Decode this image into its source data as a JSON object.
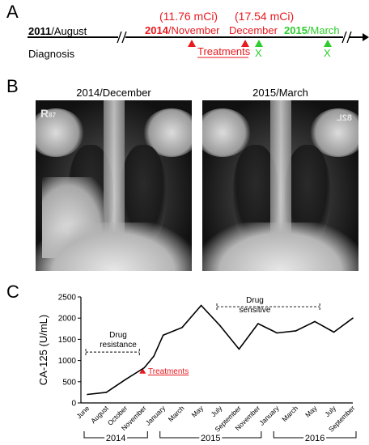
{
  "panel_a": {
    "letter": "A",
    "start_year": "2011",
    "start_rest": "/August",
    "diagnosis": "Diagnosis",
    "dose1": "(11.76 mCi)",
    "dose2": "(17.54 mCi)",
    "t1_year": "2014",
    "t1_rest": "/November",
    "t2": "December",
    "followup_year": "2015",
    "followup_rest": "/March",
    "treatments": "Treatments",
    "x_mark": "X",
    "colors": {
      "treatment": "#e8191f",
      "followup": "#2ecc2e"
    }
  },
  "panel_b": {
    "letter": "B",
    "image1_title": "2014/December",
    "image1_marker": "R",
    "image1_marker_sub": "87",
    "image2_title": "2015/March",
    "image2_marker": "82L"
  },
  "panel_c": {
    "letter": "C",
    "drug_resistance": [
      "Drug",
      "resistance"
    ],
    "drug_sensitive": [
      "Drug",
      "sensitive"
    ],
    "treatments": "Treatments"
  },
  "chart_data": {
    "type": "line",
    "ylabel": "CA-125 (U/mL)",
    "ylim": [
      0,
      2500
    ],
    "yticks": [
      0,
      500,
      1000,
      1500,
      2000,
      2500
    ],
    "categories": [
      "June",
      "August",
      "October",
      "November",
      "January",
      "March",
      "May",
      "July",
      "September",
      "November",
      "January",
      "March",
      "May",
      "July",
      "September"
    ],
    "year_groups": [
      {
        "label": "2014",
        "from": 0,
        "to": 3
      },
      {
        "label": "2015",
        "from": 4,
        "to": 9
      },
      {
        "label": "2016",
        "from": 10,
        "to": 14
      }
    ],
    "x": [
      0,
      1,
      2,
      3,
      3.5,
      4,
      5,
      6,
      7,
      8,
      9,
      10,
      11,
      12,
      13,
      14
    ],
    "values": [
      200,
      250,
      550,
      830,
      1100,
      1600,
      1780,
      2300,
      1820,
      1270,
      1870,
      1650,
      1700,
      1920,
      1670,
      2000
    ],
    "grid": false
  }
}
